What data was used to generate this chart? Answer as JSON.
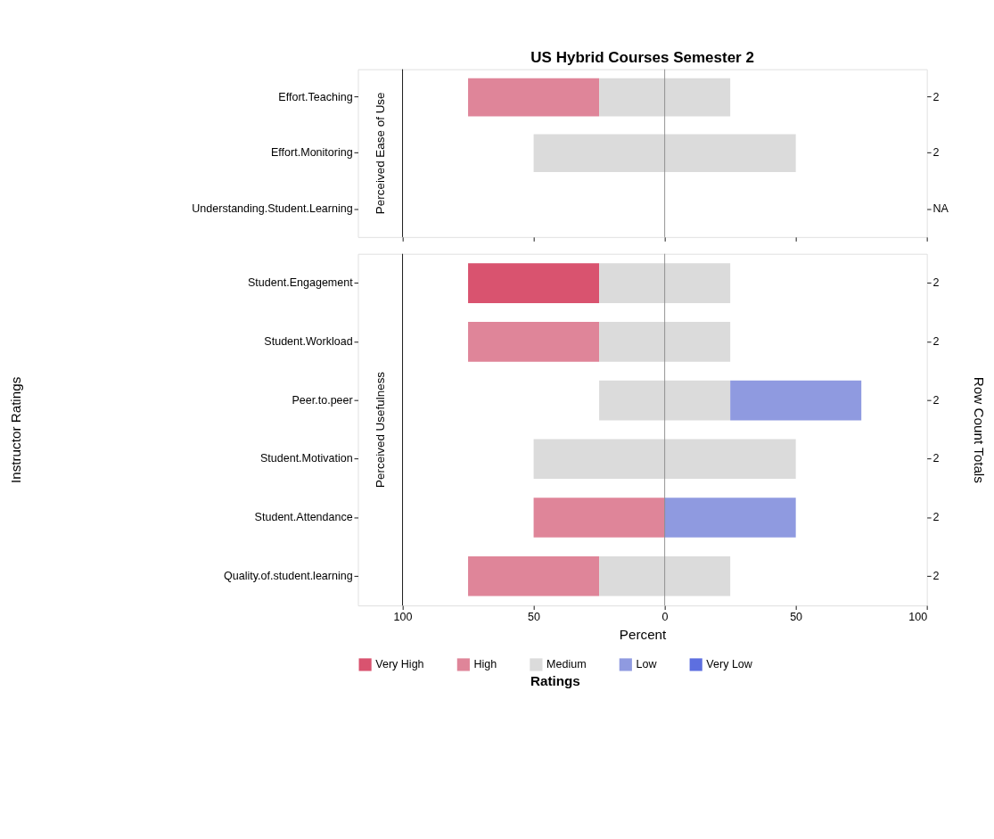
{
  "chart_data": [
    {
      "type": "bar",
      "orientation": "horizontal",
      "title": "US Hybrid Courses Semester 2",
      "annotations": [
        "Perceived Ease of Use"
      ],
      "categories": [
        "Effort.Teaching",
        "Effort.Monitoring",
        "Understanding.Student.Learning"
      ],
      "y2_categories": [
        "2",
        "2",
        "NA"
      ],
      "series": [
        {
          "color": "#df8599",
          "values": [
            50,
            null,
            null
          ],
          "base": [
            -75,
            null,
            null
          ]
        },
        {
          "color": "#dbdbdb",
          "values": [
            50,
            100,
            null
          ],
          "base": [
            -25,
            -50,
            null
          ]
        }
      ],
      "xlim": [
        -117,
        100
      ],
      "xticks": [
        {
          "value": -100,
          "label": null
        },
        {
          "value": -50,
          "label": null
        },
        {
          "value": 0,
          "label": null
        },
        {
          "value": 50,
          "label": null
        },
        {
          "value": 100,
          "label": null
        }
      ],
      "ref_lines": [
        {
          "axis": "x",
          "value": 0,
          "color": "#888888"
        },
        {
          "axis": "x",
          "value": -100,
          "color": "#000000"
        }
      ],
      "tick_labels": "y",
      "grid": false
    },
    {
      "type": "bar",
      "orientation": "horizontal",
      "annotations": [
        "Perceived Usefulness"
      ],
      "xlabel": "Percent",
      "ylabel": "Instructor Ratings",
      "y2label": "Row Count Totals",
      "legend_title": "Ratings",
      "categories": [
        "Student.Engagement",
        "Student.Workload",
        "Peer.to.peer",
        "Student.Motivation",
        "Student.Attendance",
        "Quality.of.student.learning"
      ],
      "y2_categories": [
        "2",
        "2",
        "2",
        "2",
        "2",
        "2"
      ],
      "series": [
        {
          "name": "Very High",
          "color": "#d9536f",
          "values": [
            50,
            null,
            null,
            null,
            null,
            null
          ],
          "base": [
            -75,
            null,
            null,
            null,
            null,
            null
          ]
        },
        {
          "name": "High",
          "color": "#df8599",
          "values": [
            null,
            50,
            null,
            null,
            50,
            50
          ],
          "base": [
            null,
            -75,
            null,
            null,
            -50,
            -75
          ]
        },
        {
          "name": "Medium",
          "color": "#dbdbdb",
          "values": [
            50,
            50,
            50,
            100,
            null,
            50
          ],
          "base": [
            -25,
            -25,
            -25,
            -50,
            null,
            -25
          ]
        },
        {
          "name": "Low",
          "color": "#8f9ae0",
          "values": [
            null,
            null,
            50,
            null,
            50,
            null
          ],
          "base": [
            null,
            null,
            25,
            null,
            0,
            null
          ]
        },
        {
          "name": "Very Low",
          "color": "#5d6fe0",
          "values": [
            null,
            null,
            null,
            null,
            null,
            null
          ],
          "base": [
            null,
            null,
            null,
            null,
            null,
            null
          ]
        }
      ],
      "xlim": [
        -117,
        100
      ],
      "xticks": [
        {
          "value": -100,
          "label": "100"
        },
        {
          "value": -50,
          "label": "50"
        },
        0,
        50,
        100
      ],
      "ref_lines": [
        {
          "axis": "x",
          "value": 0,
          "color": "#888888"
        },
        {
          "axis": "x",
          "value": -100,
          "color": "#000000"
        }
      ],
      "legend": "bottom",
      "grid": false
    }
  ]
}
